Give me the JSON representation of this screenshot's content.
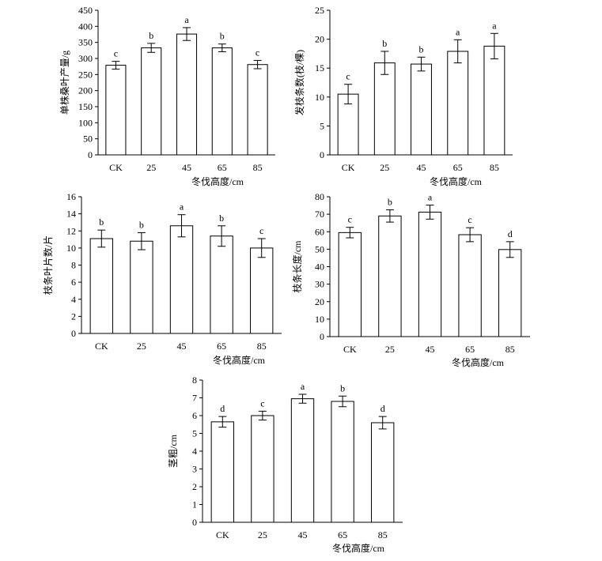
{
  "chart_data": [
    {
      "type": "bar",
      "categories": [
        "CK",
        "25",
        "45",
        "65",
        "85"
      ],
      "values": [
        279,
        333,
        376,
        333,
        281
      ],
      "errors": [
        12,
        14,
        20,
        12,
        13
      ],
      "letters": [
        "c",
        "b",
        "a",
        "b",
        "c"
      ],
      "ylabel": "单株桑叶产量/g",
      "xlabel": "冬伐高度/cm",
      "ylim": [
        0,
        450
      ],
      "yticks": [
        0,
        50,
        100,
        150,
        200,
        250,
        300,
        350,
        400,
        450
      ]
    },
    {
      "type": "bar",
      "categories": [
        "CK",
        "25",
        "45",
        "65",
        "85"
      ],
      "values": [
        10.5,
        15.9,
        15.7,
        17.9,
        18.8
      ],
      "errors": [
        1.7,
        2.0,
        1.2,
        2.0,
        2.2
      ],
      "letters": [
        "c",
        "b",
        "b",
        "a",
        "a"
      ],
      "ylabel": "发枝条数(枝/棵)",
      "xlabel": "冬伐高度/cm",
      "ylim": [
        0,
        25
      ],
      "yticks": [
        0,
        5,
        10,
        15,
        20,
        25
      ]
    },
    {
      "type": "bar",
      "categories": [
        "CK",
        "25",
        "45",
        "65",
        "85"
      ],
      "values": [
        11.1,
        10.8,
        12.6,
        11.4,
        10.0
      ],
      "errors": [
        1.0,
        1.0,
        1.3,
        1.2,
        1.1
      ],
      "letters": [
        "b",
        "b",
        "a",
        "b",
        "c"
      ],
      "ylabel": "枝条叶片数/片",
      "xlabel": "冬伐高度/cm",
      "ylim": [
        0,
        16
      ],
      "yticks": [
        0,
        2,
        4,
        6,
        8,
        10,
        12,
        14,
        16
      ]
    },
    {
      "type": "bar",
      "categories": [
        "CK",
        "25",
        "45",
        "65",
        "85"
      ],
      "values": [
        59.5,
        69.0,
        71.2,
        58.3,
        49.8
      ],
      "errors": [
        3.0,
        3.5,
        4.0,
        4.0,
        4.5
      ],
      "letters": [
        "c",
        "b",
        "a",
        "c",
        "d"
      ],
      "ylabel": "枝条长度/cm",
      "xlabel": "冬伐高度/cm",
      "ylim": [
        0,
        80
      ],
      "yticks": [
        0,
        10,
        20,
        30,
        40,
        50,
        60,
        70,
        80
      ]
    },
    {
      "type": "bar",
      "categories": [
        "CK",
        "25",
        "45",
        "65",
        "85"
      ],
      "values": [
        5.65,
        6.0,
        6.95,
        6.8,
        5.6
      ],
      "errors": [
        0.3,
        0.25,
        0.25,
        0.3,
        0.35
      ],
      "letters": [
        "d",
        "c",
        "a",
        "b",
        "d"
      ],
      "ylabel": "茎粗/cm",
      "xlabel": "冬伐高度/cm",
      "ylim": [
        0,
        8
      ],
      "yticks": [
        0,
        1,
        2,
        3,
        4,
        5,
        6,
        7,
        8
      ]
    }
  ]
}
